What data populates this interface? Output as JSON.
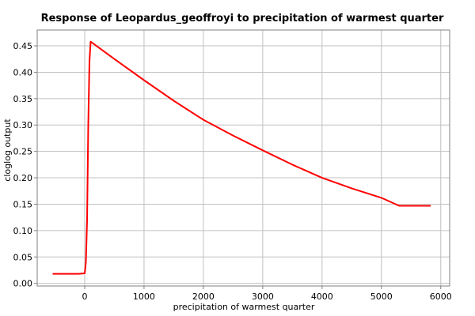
{
  "chart_data": {
    "type": "line",
    "title": "Response of Leopardus_geoffroyi to precipitation of warmest quarter",
    "xlabel": "precipitation of warmest quarter",
    "ylabel": "cloglog output",
    "xlim": [
      -800,
      6150
    ],
    "ylim": [
      -0.005,
      0.48
    ],
    "xticks": [
      0,
      1000,
      2000,
      3000,
      4000,
      5000,
      6000
    ],
    "yticks": [
      0.0,
      0.05,
      0.1,
      0.15,
      0.2,
      0.25,
      0.3,
      0.35,
      0.4,
      0.45
    ],
    "ytick_labels": [
      "0.00",
      "0.05",
      "0.10",
      "0.15",
      "0.20",
      "0.25",
      "0.30",
      "0.35",
      "0.40",
      "0.45"
    ],
    "xtick_labels": [
      "0",
      "1000",
      "2000",
      "3000",
      "4000",
      "5000",
      "6000"
    ],
    "grid": true,
    "series": [
      {
        "color": "#ff0000",
        "x": [
          -540,
          -100,
          0,
          20,
          40,
          60,
          80,
          100,
          500,
          1000,
          1500,
          2000,
          2500,
          3000,
          3500,
          4000,
          4500,
          5000,
          5300,
          5830
        ],
        "y": [
          0.018,
          0.018,
          0.019,
          0.04,
          0.12,
          0.3,
          0.42,
          0.458,
          0.425,
          0.385,
          0.346,
          0.31,
          0.28,
          0.252,
          0.225,
          0.2,
          0.18,
          0.162,
          0.147,
          0.147
        ]
      }
    ]
  }
}
